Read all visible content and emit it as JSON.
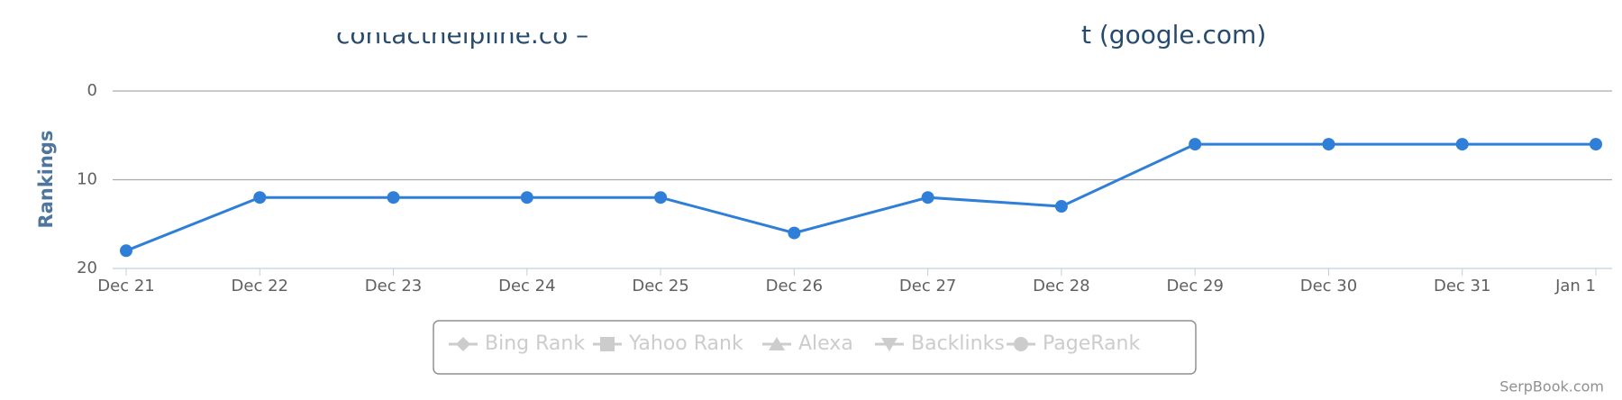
{
  "chart_data": {
    "type": "line",
    "title_left": "contacthelpline.co –",
    "title_right": "t (google.com)",
    "y_label": "Rankings",
    "categories": [
      "Dec 21",
      "Dec 22",
      "Dec 23",
      "Dec 24",
      "Dec 25",
      "Dec 26",
      "Dec 27",
      "Dec 28",
      "Dec 29",
      "Dec 30",
      "Dec 31",
      "Jan 1"
    ],
    "series": [
      {
        "color": "#2f7ed8",
        "values": [
          18,
          12,
          12,
          12,
          12,
          16,
          12,
          13,
          6,
          6,
          6,
          6
        ]
      }
    ],
    "ylim": [
      0,
      20
    ],
    "y_reversed": true,
    "yticks": [
      0,
      10,
      20
    ],
    "grid": true,
    "legend": [
      "Bing Rank",
      "Yahoo Rank",
      "Alexa",
      "Backlinks",
      "PageRank"
    ],
    "legend_color": "#cccccc",
    "credit": "SerpBook.com"
  }
}
